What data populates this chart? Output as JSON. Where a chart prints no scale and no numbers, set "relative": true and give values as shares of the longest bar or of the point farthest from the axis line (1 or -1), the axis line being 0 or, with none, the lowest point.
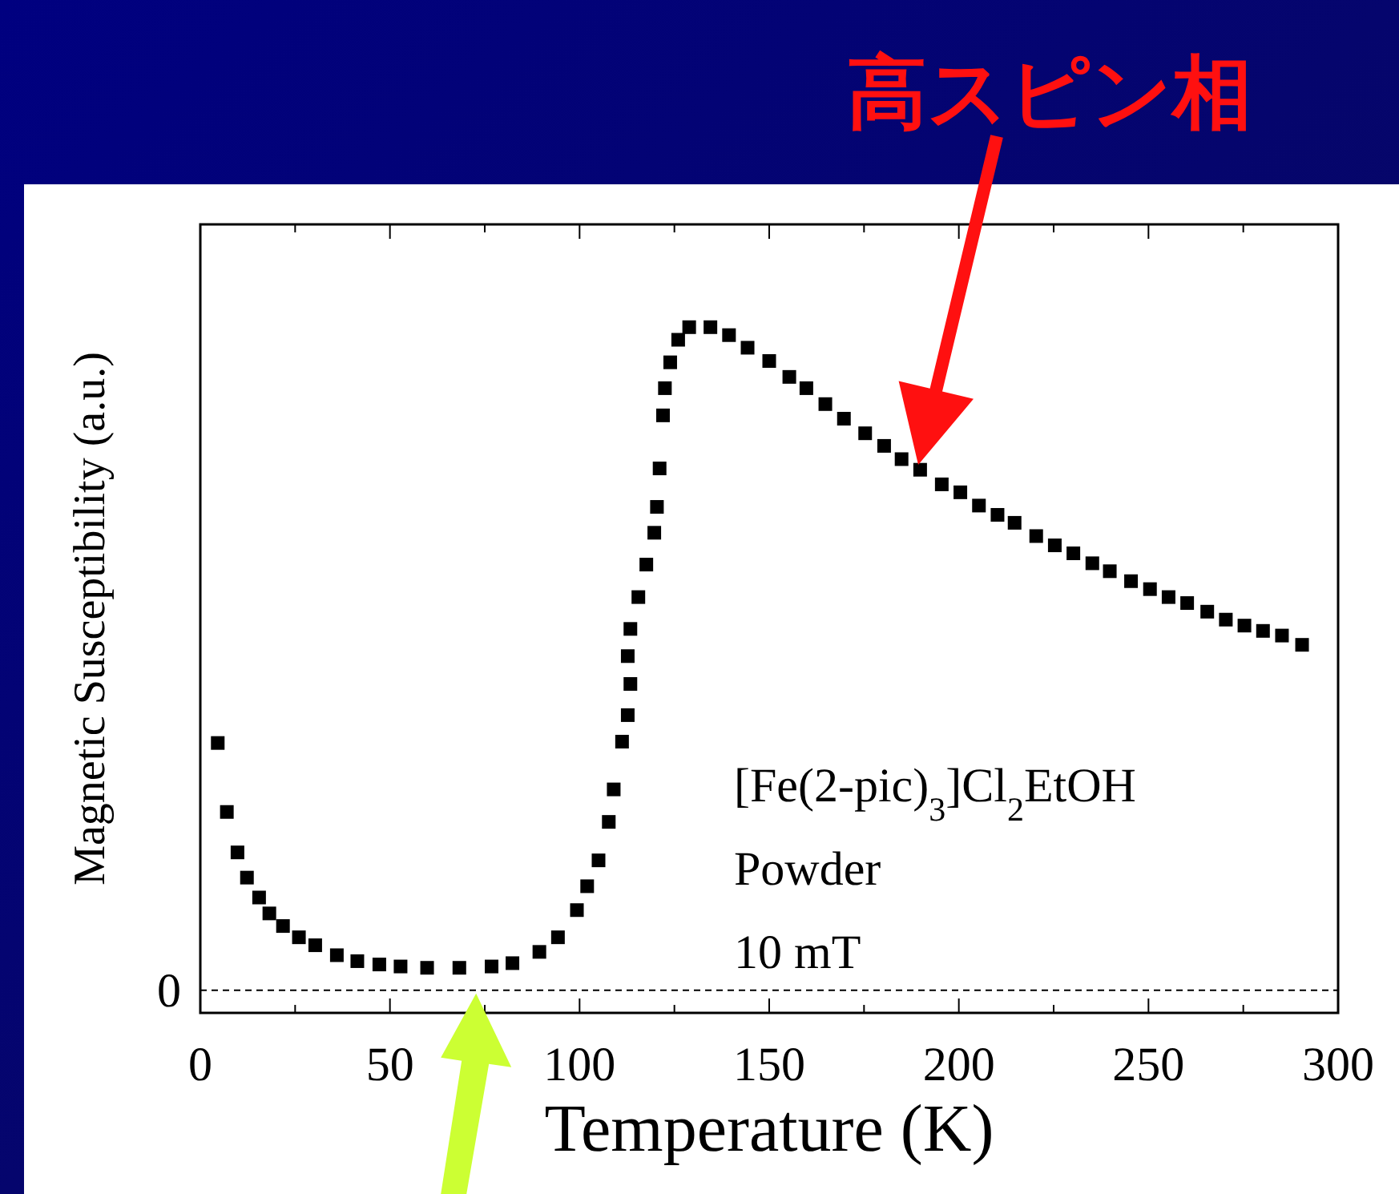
{
  "chart_data": {
    "type": "scatter",
    "relative": true,
    "marker": "square",
    "color": "#000000",
    "xlabel": "Temperature (K)",
    "ylabel": "Magnetic Susceptibility (a.u.)",
    "xlim": [
      0,
      300
    ],
    "xticks": [
      0,
      {
        "value": 25,
        "label": null
      },
      50,
      {
        "value": 75,
        "label": null
      },
      100,
      {
        "value": 125,
        "label": null
      },
      150,
      {
        "value": 175,
        "label": null
      },
      200,
      {
        "value": 225,
        "label": null
      },
      250,
      {
        "value": 275,
        "label": null
      },
      300
    ],
    "x": [
      4.6,
      7.0,
      9.8,
      12.3,
      15.5,
      18.2,
      21.8,
      26.0,
      30.3,
      36.0,
      41.4,
      47.2,
      52.8,
      59.8,
      68.3,
      76.8,
      82.3,
      89.4,
      94.3,
      99.3,
      102.0,
      105.0,
      107.7,
      109.0,
      111.2,
      112.7,
      113.4,
      112.7,
      113.4,
      115.5,
      117.6,
      119.7,
      120.4,
      121.1,
      122.0,
      122.5,
      123.9,
      126.0,
      128.9,
      134.5,
      139.4,
      144.3,
      150.0,
      155.3,
      159.8,
      164.8,
      169.7,
      175.3,
      180.3,
      184.9,
      189.8,
      195.5,
      200.4,
      205.3,
      210.2,
      214.7,
      220.4,
      225.3,
      230.2,
      235.2,
      239.8,
      245.4,
      250.4,
      255.3,
      260.2,
      265.5,
      270.4,
      275.3,
      280.2,
      285.2,
      290.5
    ],
    "values": [
      0.373,
      0.269,
      0.208,
      0.17,
      0.14,
      0.116,
      0.097,
      0.08,
      0.068,
      0.053,
      0.044,
      0.039,
      0.036,
      0.034,
      0.034,
      0.036,
      0.041,
      0.058,
      0.08,
      0.121,
      0.157,
      0.196,
      0.254,
      0.303,
      0.375,
      0.415,
      0.462,
      0.504,
      0.545,
      0.593,
      0.642,
      0.69,
      0.729,
      0.787,
      0.867,
      0.908,
      0.947,
      0.981,
      1.0,
      1.0,
      0.988,
      0.969,
      0.949,
      0.925,
      0.908,
      0.884,
      0.862,
      0.84,
      0.821,
      0.801,
      0.785,
      0.763,
      0.751,
      0.731,
      0.717,
      0.705,
      0.685,
      0.671,
      0.659,
      0.644,
      0.632,
      0.617,
      0.605,
      0.593,
      0.584,
      0.571,
      0.559,
      0.55,
      0.542,
      0.535,
      0.521
    ],
    "ref_lines": [
      {
        "axis": "y",
        "value": 0,
        "label": "0",
        "line_style": "dashed"
      }
    ],
    "annotations": [
      "高スピン相",
      "[Fe(2-pic)$_{3}$]Cl$_{2}$EtOH",
      "Powder",
      "10 mT"
    ]
  }
}
